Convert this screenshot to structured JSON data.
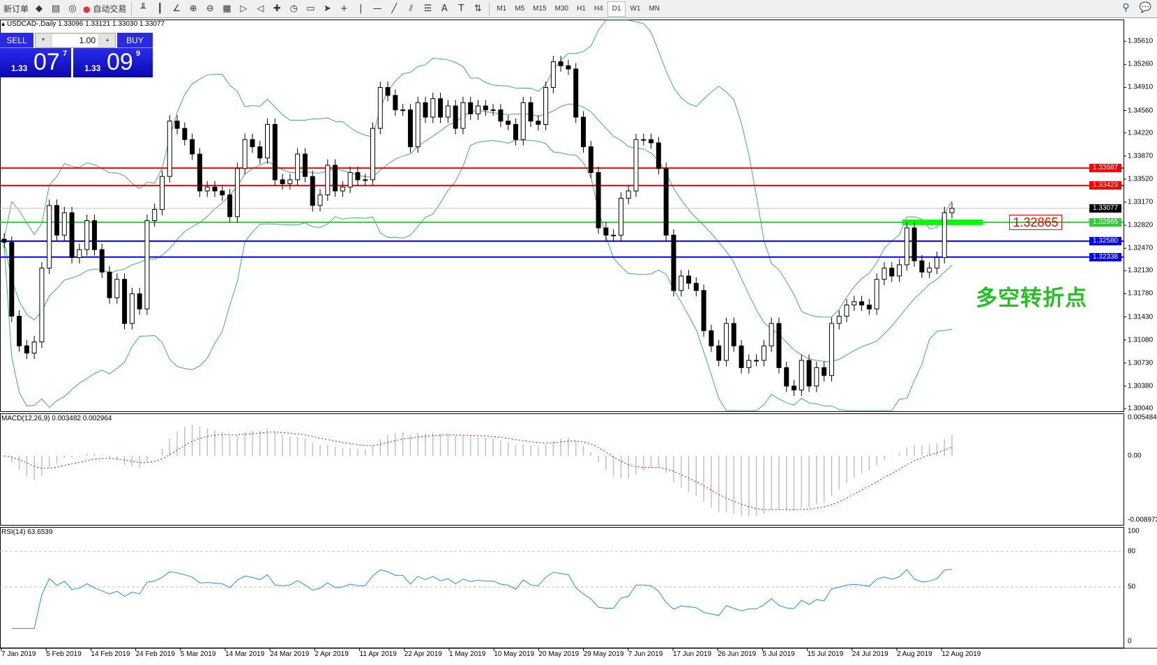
{
  "toolbar": {
    "new_order_label": "新订单",
    "auto_trading_label": "自动交易",
    "icons": [
      "market-watch-icon",
      "data-window-icon",
      "signals-icon",
      "bar-chart-icon",
      "candlestick-icon",
      "line-chart-icon",
      "zoom-in-icon",
      "zoom-out-icon",
      "tile-windows-icon",
      "autoscroll-icon",
      "chart-shift-icon",
      "indicators-icon",
      "periods-icon",
      "templates-icon",
      "cursor-icon",
      "crosshair-icon",
      "vertical-line-icon",
      "horizontal-line-icon",
      "trendline-icon",
      "equidistant-channel-icon",
      "fibonacci-icon",
      "text-icon",
      "text-label-icon",
      "arrows-icon"
    ],
    "timeframes": [
      "M1",
      "M5",
      "M15",
      "M30",
      "H1",
      "H4",
      "D1",
      "W1",
      "MN"
    ],
    "active_timeframe": "D1"
  },
  "chart": {
    "header": "USDCAD-,Daily  1.33096 1.33121 1.33030 1.33077",
    "symbol": "USDCAD-",
    "period": "Daily",
    "ohlc": {
      "open": 1.33096,
      "high": 1.33121,
      "low": 1.3303,
      "close": 1.33077
    }
  },
  "trade_panel": {
    "sell_label": "SELL",
    "buy_label": "BUY",
    "lot": "1.00",
    "sell_price": {
      "prefix": "1.33",
      "big": "07",
      "sup": "7"
    },
    "buy_price": {
      "prefix": "1.33",
      "big": "09",
      "sup": "9"
    }
  },
  "price_axis": [
    "1.35610",
    "1.35260",
    "1.34910",
    "1.34560",
    "1.34220",
    "1.33870",
    "1.33520",
    "1.33170",
    "1.32820",
    "1.32470",
    "1.32130",
    "1.31780",
    "1.31430",
    "1.31080",
    "1.30730",
    "1.30380",
    "1.30040"
  ],
  "levels": [
    {
      "price": "1.33687",
      "color": "#ff0000"
    },
    {
      "price": "1.33423",
      "color": "#ff0000"
    },
    {
      "price": "1.33077",
      "color": "#000000",
      "current": true
    },
    {
      "price": "1.32865",
      "color": "#32cd32"
    },
    {
      "price": "1.32580",
      "color": "#0000ff"
    },
    {
      "price": "1.32338",
      "color": "#0000ff"
    }
  ],
  "annotation": {
    "text": "多空转折点",
    "level_label": "1.32865",
    "color": "#1fc21f"
  },
  "candles_close": [
    1.3256,
    1.3144,
    1.3099,
    1.3088,
    1.3105,
    1.3217,
    1.3312,
    1.3267,
    1.3301,
    1.3233,
    1.3245,
    1.3289,
    1.3245,
    1.3211,
    1.3172,
    1.32,
    1.3133,
    1.3178,
    1.3155,
    1.3289,
    1.3306,
    1.3356,
    1.344,
    1.3429,
    1.3412,
    1.339,
    1.3334,
    1.334,
    1.3334,
    1.3328,
    1.3295,
    1.3368,
    1.3412,
    1.3401,
    1.3384,
    1.3435,
    1.3351,
    1.3345,
    1.3351,
    1.339,
    1.3356,
    1.3312,
    1.3328,
    1.3373,
    1.3334,
    1.334,
    1.3362,
    1.3351,
    1.3351,
    1.3429,
    1.3491,
    1.3479,
    1.3457,
    1.3457,
    1.3401,
    1.3468,
    1.3446,
    1.3474,
    1.3446,
    1.3463,
    1.3429,
    1.3468,
    1.3451,
    1.3463,
    1.3457,
    1.3457,
    1.344,
    1.3435,
    1.3412,
    1.3468,
    1.344,
    1.3435,
    1.3491,
    1.353,
    1.3524,
    1.3519,
    1.3446,
    1.3401,
    1.3362,
    1.3278,
    1.3267,
    1.3267,
    1.3323,
    1.3334,
    1.3412,
    1.3412,
    1.3407,
    1.3368,
    1.3267,
    1.3183,
    1.3205,
    1.3194,
    1.3183,
    1.3122,
    1.3099,
    1.3077,
    1.3133,
    1.3099,
    1.3066,
    1.3077,
    1.3077,
    1.3099,
    1.3133,
    1.3066,
    1.3038,
    1.3032,
    1.3077,
    1.3038,
    1.3066,
    1.3054,
    1.3133,
    1.3144,
    1.3161,
    1.3166,
    1.3161,
    1.3155,
    1.32,
    1.3217,
    1.3205,
    1.3222,
    1.3278,
    1.3228,
    1.3211,
    1.3217,
    1.3233,
    1.3301,
    1.33077
  ],
  "macd": {
    "title": "MACD(12,26,9) 0.003482 0.002964",
    "axis": [
      "0.005484",
      "0.00",
      "-0.008973"
    ],
    "hist_color": "#c0c0c0",
    "signal_color": "#ff0000"
  },
  "rsi": {
    "title": "RSI(14) 63.6539",
    "axis": [
      "100",
      "80",
      "50",
      "0"
    ],
    "color": "#1e90ff"
  },
  "bollinger_color": "#3cb371",
  "dates": [
    "7 Jan 2019",
    "5 Feb 2019",
    "14 Feb 2019",
    "24 Feb 2019",
    "5 Mar 2019",
    "14 Mar 2019",
    "24 Mar 2019",
    "2 Apr 2019",
    "11 Apr 2019",
    "22 Apr 2019",
    "1 May 2019",
    "10 May 2019",
    "20 May 2019",
    "29 May 2019",
    "7 Jun 2019",
    "17 Jun 2019",
    "26 Jun 2019",
    "5 Jul 2019",
    "15 Jul 2019",
    "24 Jul 2019",
    "2 Aug 2019",
    "12 Aug 2019"
  ]
}
